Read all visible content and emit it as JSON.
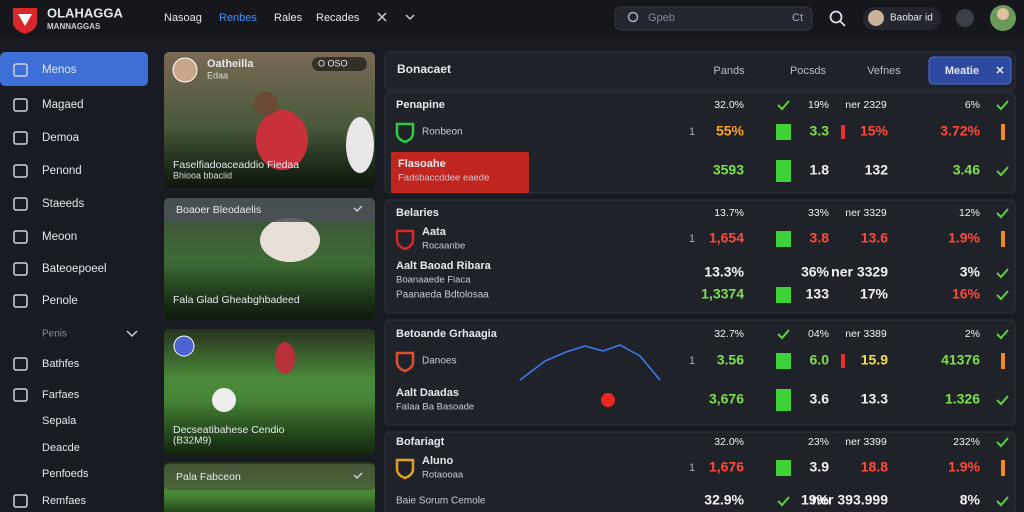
{
  "header": {
    "brand": "OLAHAGGA",
    "brand_sub": "MANNAGGAS",
    "nav": [
      "Nasoag",
      "Renbes",
      "Rales",
      "Recades"
    ],
    "search": "Gpeb",
    "search_key": "Ct",
    "user": "Baobar id"
  },
  "sidebar": {
    "items": [
      "Menos",
      "Magaed",
      "Demoa",
      "Penond",
      "Staeeds",
      "Meoon",
      "Bateoepoeel",
      "Penole"
    ],
    "section": "Penis",
    "sub_items": [
      "Bathfes",
      "Farfaes",
      "Sepala",
      "Deacde",
      "Penfoeds",
      "Remfaes"
    ]
  },
  "cards": [
    {
      "name": "Oatheilla",
      "handle": "Edaa",
      "badge": "O OSO",
      "caption": "Faselfiadoaceaddio Fiedaa",
      "caption_sub": "Bhiooa bbaciid"
    },
    {
      "header": "Boaoer Bleodaelis",
      "caption": "Fala Glad Gheabghbadeed"
    },
    {
      "caption": "Decseatibahese Cendio",
      "caption_sub": "(B32M9)"
    },
    {
      "header": "Pala Fabceon"
    }
  ],
  "panel": {
    "title": "Bonacaet",
    "columns": [
      "Pands",
      "Pocsds",
      "Vefnes"
    ],
    "active_tab": "Meatie",
    "groups": [
      {
        "rows": [
          {
            "label": "Penapine",
            "cells": [
              "32.0%",
              "19%",
              "ner 2329",
              "6%"
            ]
          },
          {
            "label": "Ronbeon",
            "prefix": "1",
            "cells": [
              "55%",
              "3.3",
              "15%",
              "3.72%"
            ]
          },
          {
            "label": "Flasoahe",
            "sub": "Fadsbaccddee eaede",
            "cells": [
              "3593",
              "1.8",
              "132",
              "3.46"
            ]
          }
        ]
      },
      {
        "rows": [
          {
            "label": "Belaries",
            "cells": [
              "13.7%",
              "33%",
              "ner 3329",
              "12%"
            ]
          },
          {
            "label": "Aata",
            "sub": "Rocaanbe",
            "prefix": "1",
            "cells": [
              "1,654",
              "3.8",
              "13.6",
              "1.9%"
            ]
          },
          {
            "label": "Aalt Baoad Ribara",
            "sub": "Boanaaede Fiaca",
            "cells": [
              "13.3%",
              "36%",
              "ner 3329",
              "3%"
            ]
          },
          {
            "label": "Paanaeda Bdtolosaa",
            "cells": [
              "1,3374",
              "133",
              "17%",
              "16%"
            ]
          }
        ]
      },
      {
        "rows": [
          {
            "label": "Betoande Grhaagia",
            "cells": [
              "32.7%",
              "04%",
              "ner 3389",
              "2%"
            ]
          },
          {
            "label": "Danoes",
            "prefix": "1",
            "cells": [
              "3.56",
              "6.0",
              "15.9",
              "41376"
            ]
          },
          {
            "label": "Aalt Daadas",
            "sub": "Falaa Ba Basoade",
            "cells": [
              "3,676",
              "3.6",
              "13.3",
              "1.326"
            ]
          }
        ]
      },
      {
        "rows": [
          {
            "label": "Bofariagt",
            "cells": [
              "32.0%",
              "23%",
              "ner 3399",
              "232%"
            ]
          },
          {
            "label": "Aluno",
            "sub": "Rotaooaa",
            "prefix": "1",
            "cells": [
              "1,676",
              "3.9",
              "18.8",
              "1.9%"
            ]
          },
          {
            "label": "Baie Sorum Cemole",
            "cells": [
              "32.9%",
              "19%",
              "ner 393.999",
              "8%"
            ]
          }
        ]
      }
    ]
  }
}
